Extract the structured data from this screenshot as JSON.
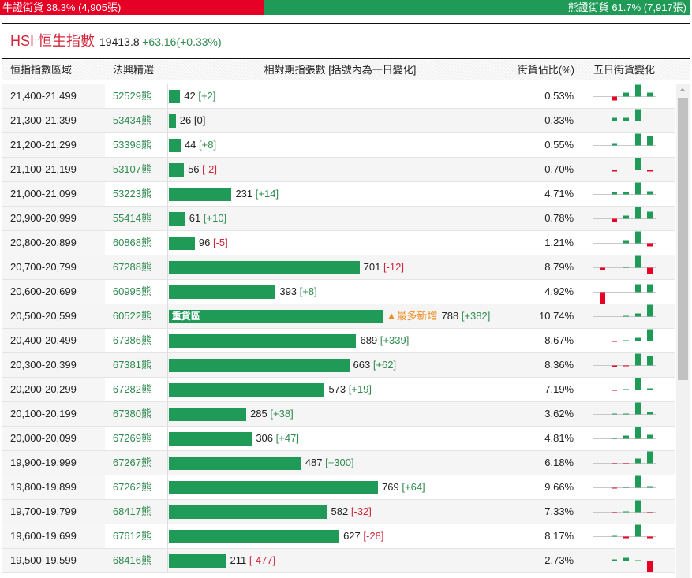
{
  "ratio": {
    "bull_label": "牛證街貨 38.3% (4,905張)",
    "bull_pct": 38.3,
    "bear_label": "熊證街貨 61.7% (7,917張)",
    "bear_pct": 61.7
  },
  "title": {
    "name": "HSI 恒生指數",
    "price": "19413.8",
    "change": "+63.16(+0.33%)"
  },
  "headers": [
    "恒指指數區域",
    "法興精選",
    "相對期指張數 [括號內為一日變化]",
    "街貨佔比(%)",
    "五日街貨變化"
  ],
  "hot_label": "重貨區",
  "most_new_label": "▲最多新增",
  "colors": {
    "bull": "#e60026",
    "bear": "#1f9a57",
    "positive": "#2f8a4f",
    "negative": "#d0263a"
  },
  "rows": [
    {
      "range": "21,400-21,499",
      "code": "52529熊",
      "count": 42,
      "count_text": "42",
      "change": "[+2]",
      "pct": "0.53%",
      "spark": [
        0,
        -5,
        5,
        15,
        5
      ]
    },
    {
      "range": "21,300-21,399",
      "code": "53434熊",
      "count": 26,
      "count_text": "26",
      "change": "[0]",
      "pct": "0.33%",
      "spark": [
        0,
        4,
        4,
        15,
        0
      ]
    },
    {
      "range": "21,200-21,299",
      "code": "53398熊",
      "count": 44,
      "count_text": "44",
      "change": "[+8]",
      "pct": "0.55%",
      "spark": [
        0,
        3,
        0,
        15,
        12
      ]
    },
    {
      "range": "21,100-21,199",
      "code": "53107熊",
      "count": 56,
      "count_text": "56",
      "change": "[-2]",
      "pct": "0.70%",
      "spark": [
        0,
        -2,
        0,
        15,
        -2
      ]
    },
    {
      "range": "21,000-21,099",
      "code": "53223熊",
      "count": 231,
      "count_text": "231",
      "change": "[+14]",
      "pct": "4.71%",
      "spark": [
        0,
        3,
        3,
        15,
        4
      ]
    },
    {
      "range": "20,900-20,999",
      "code": "55414熊",
      "count": 61,
      "count_text": "61",
      "change": "[+10]",
      "pct": "0.78%",
      "spark": [
        0,
        -4,
        4,
        15,
        9
      ]
    },
    {
      "range": "20,800-20,899",
      "code": "60868熊",
      "count": 96,
      "count_text": "96",
      "change": "[-5]",
      "pct": "1.21%",
      "spark": [
        0,
        0,
        4,
        15,
        -4
      ]
    },
    {
      "range": "20,700-20,799",
      "code": "67288熊",
      "count": 701,
      "count_text": "701",
      "change": "[-12]",
      "pct": "8.79%",
      "spark": [
        -3,
        0,
        1,
        15,
        -8
      ]
    },
    {
      "range": "20,600-20,699",
      "code": "60995熊",
      "count": 393,
      "count_text": "393",
      "change": "[+8]",
      "pct": "4.92%",
      "spark": [
        -15,
        0,
        0,
        10,
        10
      ]
    },
    {
      "range": "20,500-20,599",
      "code": "60522熊",
      "count": 788,
      "count_text": "788",
      "change": "[+382]",
      "pct": "10.74%",
      "hot": true,
      "spark": [
        0,
        0,
        1,
        4,
        15
      ]
    },
    {
      "range": "20,400-20,499",
      "code": "67386熊",
      "count": 689,
      "count_text": "689",
      "change": "[+339]",
      "pct": "8.67%",
      "spark": [
        0,
        -1,
        1,
        4,
        15
      ]
    },
    {
      "range": "20,300-20,399",
      "code": "67381熊",
      "count": 663,
      "count_text": "663",
      "change": "[+62]",
      "pct": "8.36%",
      "spark": [
        0,
        -2,
        -1,
        15,
        12
      ]
    },
    {
      "range": "20,200-20,299",
      "code": "67282熊",
      "count": 573,
      "count_text": "573",
      "change": "[+19]",
      "pct": "7.19%",
      "spark": [
        0,
        -1,
        1,
        15,
        2
      ]
    },
    {
      "range": "20,100-20,199",
      "code": "67380熊",
      "count": 285,
      "count_text": "285",
      "change": "[+38]",
      "pct": "3.62%",
      "spark": [
        0,
        1,
        1,
        15,
        3
      ]
    },
    {
      "range": "20,000-20,099",
      "code": "67269熊",
      "count": 306,
      "count_text": "306",
      "change": "[+47]",
      "pct": "4.81%",
      "spark": [
        0,
        1,
        4,
        15,
        5
      ]
    },
    {
      "range": "19,900-19,999",
      "code": "67267熊",
      "count": 487,
      "count_text": "487",
      "change": "[+300]",
      "pct": "6.18%",
      "spark": [
        0,
        -1,
        -1,
        6,
        15
      ]
    },
    {
      "range": "19,800-19,899",
      "code": "67262熊",
      "count": 769,
      "count_text": "769",
      "change": "[+64]",
      "pct": "9.66%",
      "spark": [
        0,
        -1,
        1,
        15,
        2
      ]
    },
    {
      "range": "19,700-19,799",
      "code": "68417熊",
      "count": 582,
      "count_text": "582",
      "change": "[-32]",
      "pct": "7.33%",
      "spark": [
        0,
        -1,
        1,
        15,
        -1
      ]
    },
    {
      "range": "19,600-19,699",
      "code": "67612熊",
      "count": 627,
      "count_text": "627",
      "change": "[-28]",
      "pct": "8.17%",
      "spark": [
        0,
        1,
        -2,
        15,
        -2
      ]
    },
    {
      "range": "19,500-19,599",
      "code": "68416熊",
      "count": 211,
      "count_text": "211",
      "change": "[-477]",
      "pct": "2.73%",
      "spark": [
        0,
        2,
        4,
        1,
        -15
      ]
    }
  ]
}
